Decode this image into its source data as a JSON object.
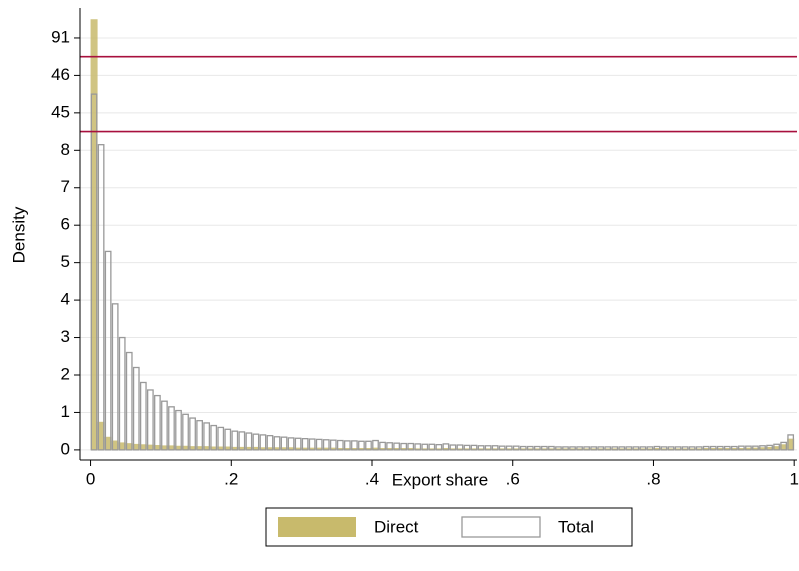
{
  "chart_data": {
    "type": "histogram",
    "x_label": "Export share",
    "y_label": "Density",
    "bins": [
      0,
      0.01,
      0.02,
      0.03,
      0.04,
      0.05,
      0.06,
      0.07,
      0.08,
      0.09,
      0.1,
      0.11,
      0.12,
      0.13,
      0.14,
      0.15,
      0.16,
      0.17,
      0.18,
      0.19,
      0.2,
      0.21,
      0.22,
      0.23,
      0.24,
      0.25,
      0.26,
      0.27,
      0.28,
      0.29,
      0.3,
      0.31,
      0.32,
      0.33,
      0.34,
      0.35,
      0.36,
      0.37,
      0.38,
      0.39,
      0.4,
      0.41,
      0.42,
      0.43,
      0.44,
      0.45,
      0.46,
      0.47,
      0.48,
      0.49,
      0.5,
      0.51,
      0.52,
      0.53,
      0.54,
      0.55,
      0.56,
      0.57,
      0.58,
      0.59,
      0.6,
      0.61,
      0.62,
      0.63,
      0.64,
      0.65,
      0.66,
      0.67,
      0.68,
      0.69,
      0.7,
      0.71,
      0.72,
      0.73,
      0.74,
      0.75,
      0.76,
      0.77,
      0.78,
      0.79,
      0.8,
      0.81,
      0.82,
      0.83,
      0.84,
      0.85,
      0.86,
      0.87,
      0.88,
      0.89,
      0.9,
      0.91,
      0.92,
      0.93,
      0.94,
      0.95,
      0.96,
      0.97,
      0.98,
      0.99,
      1
    ],
    "series": [
      {
        "name": "Direct",
        "color": "#c8ba6c",
        "filled": true,
        "values": [
          91.5,
          0.75,
          0.35,
          0.25,
          0.2,
          0.18,
          0.16,
          0.15,
          0.14,
          0.13,
          0.12,
          0.12,
          0.11,
          0.11,
          0.1,
          0.1,
          0.1,
          0.09,
          0.09,
          0.09,
          0.08,
          0.08,
          0.08,
          0.08,
          0.07,
          0.07,
          0.07,
          0.07,
          0.07,
          0.06,
          0.06,
          0.06,
          0.06,
          0.06,
          0.06,
          0.05,
          0.05,
          0.05,
          0.05,
          0.05,
          0.06,
          0.05,
          0.05,
          0.05,
          0.05,
          0.05,
          0.04,
          0.04,
          0.04,
          0.04,
          0.05,
          0.04,
          0.04,
          0.04,
          0.04,
          0.04,
          0.04,
          0.04,
          0.04,
          0.04,
          0.04,
          0.04,
          0.04,
          0.04,
          0.04,
          0.04,
          0.04,
          0.04,
          0.04,
          0.04,
          0.04,
          0.04,
          0.04,
          0.04,
          0.04,
          0.04,
          0.04,
          0.04,
          0.04,
          0.04,
          0.05,
          0.04,
          0.04,
          0.04,
          0.04,
          0.04,
          0.04,
          0.05,
          0.05,
          0.05,
          0.05,
          0.05,
          0.05,
          0.06,
          0.06,
          0.07,
          0.08,
          0.1,
          0.15,
          0.3
        ]
      },
      {
        "name": "Total",
        "color": "#999999",
        "filled": false,
        "values": [
          45.5,
          8.15,
          5.3,
          3.9,
          3.0,
          2.6,
          2.2,
          1.8,
          1.6,
          1.45,
          1.3,
          1.15,
          1.05,
          0.95,
          0.85,
          0.78,
          0.72,
          0.65,
          0.6,
          0.55,
          0.5,
          0.48,
          0.45,
          0.42,
          0.4,
          0.38,
          0.35,
          0.34,
          0.32,
          0.31,
          0.3,
          0.29,
          0.28,
          0.27,
          0.26,
          0.25,
          0.24,
          0.24,
          0.23,
          0.23,
          0.25,
          0.2,
          0.19,
          0.18,
          0.17,
          0.17,
          0.16,
          0.15,
          0.15,
          0.14,
          0.16,
          0.13,
          0.13,
          0.12,
          0.12,
          0.11,
          0.11,
          0.11,
          0.1,
          0.1,
          0.1,
          0.09,
          0.09,
          0.09,
          0.09,
          0.09,
          0.08,
          0.08,
          0.08,
          0.08,
          0.08,
          0.08,
          0.08,
          0.08,
          0.08,
          0.08,
          0.08,
          0.08,
          0.08,
          0.08,
          0.09,
          0.08,
          0.08,
          0.08,
          0.08,
          0.08,
          0.08,
          0.09,
          0.09,
          0.09,
          0.09,
          0.09,
          0.1,
          0.1,
          0.1,
          0.11,
          0.12,
          0.15,
          0.2,
          0.4
        ]
      }
    ],
    "xlim": [
      -0.015,
      1.004
    ],
    "xticks": [
      0,
      {
        "value": 0.2,
        "label": ".2"
      },
      {
        "value": 0.4,
        "label": ".4"
      },
      {
        "value": 0.6,
        "label": ".6"
      },
      {
        "value": 0.8,
        "label": ".8"
      },
      1
    ],
    "ylim": [
      -0.27,
      91.8
    ],
    "yticks": [
      0,
      1,
      2,
      3,
      4,
      5,
      6,
      7,
      8,
      45,
      46,
      91
    ],
    "y_breaks": [
      [
        8.5,
        44.5
      ],
      [
        46.5,
        90.5
      ]
    ],
    "break_color": "#a8103e",
    "grid": true,
    "legend": "bottom"
  }
}
